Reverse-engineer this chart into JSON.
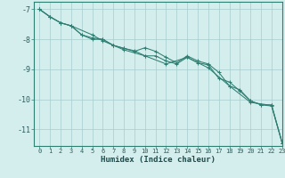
{
  "xlabel": "Humidex (Indice chaleur)",
  "bg_color": "#d4eeed",
  "line_color": "#2e7f72",
  "grid_color": "#a8cccc",
  "xlim": [
    -0.5,
    23
  ],
  "ylim": [
    -11.55,
    -6.75
  ],
  "xticks": [
    0,
    1,
    2,
    3,
    4,
    5,
    6,
    7,
    8,
    9,
    10,
    11,
    12,
    13,
    14,
    15,
    16,
    17,
    18,
    19,
    20,
    21,
    22,
    23
  ],
  "yticks": [
    -7,
    -8,
    -9,
    -10,
    -11
  ],
  "series1_x": [
    0,
    1,
    2,
    3,
    4,
    5,
    6,
    7,
    8,
    9,
    10,
    11,
    12,
    13,
    14,
    15,
    16,
    17,
    18,
    19,
    20,
    21,
    22,
    23
  ],
  "series1_y": [
    -7.0,
    -7.25,
    -7.45,
    -7.55,
    -7.85,
    -7.95,
    -8.0,
    -8.2,
    -8.3,
    -8.38,
    -8.55,
    -8.55,
    -8.72,
    -8.82,
    -8.6,
    -8.78,
    -8.85,
    -9.3,
    -9.42,
    -9.72,
    -10.05,
    -10.18,
    -10.18,
    -11.45
  ],
  "series2_x": [
    0,
    1,
    2,
    3,
    4,
    5,
    6,
    7,
    8,
    9,
    10,
    11,
    12,
    13,
    14,
    15,
    16,
    17,
    18,
    19,
    20,
    21,
    22,
    23
  ],
  "series2_y": [
    -7.0,
    -7.25,
    -7.45,
    -7.55,
    -7.85,
    -8.0,
    -8.0,
    -8.2,
    -8.3,
    -8.4,
    -8.28,
    -8.4,
    -8.6,
    -8.78,
    -8.55,
    -8.72,
    -8.82,
    -9.1,
    -9.55,
    -9.68,
    -10.05,
    -10.18,
    -10.22,
    -11.45
  ],
  "series3_x": [
    0,
    1,
    2,
    3,
    5,
    6,
    7,
    8,
    10,
    12,
    14,
    16,
    18,
    20,
    22,
    23
  ],
  "series3_y": [
    -7.0,
    -7.25,
    -7.45,
    -7.55,
    -7.85,
    -8.05,
    -8.2,
    -8.35,
    -8.55,
    -8.82,
    -8.6,
    -8.95,
    -9.55,
    -10.1,
    -10.2,
    -11.45
  ]
}
